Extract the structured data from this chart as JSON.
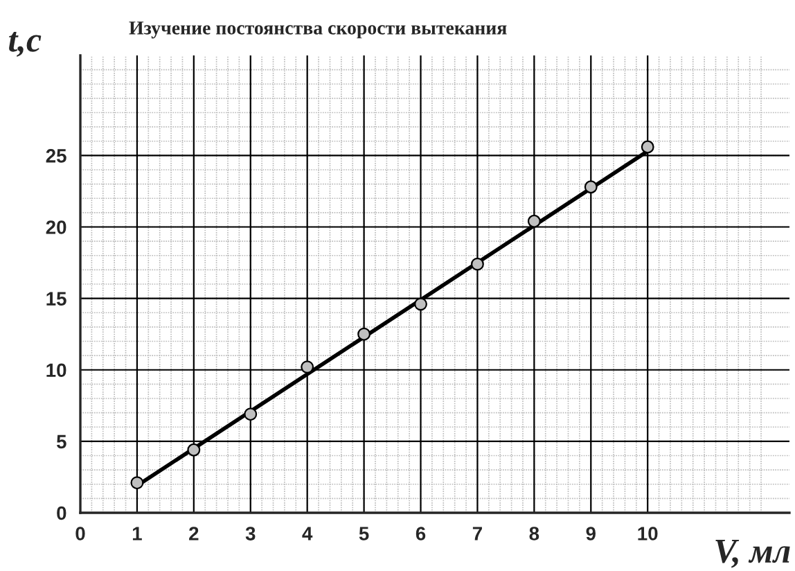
{
  "chart_data": {
    "type": "scatter",
    "title": "Изучение постоянства скорости вытекания",
    "xlabel": "V, мл",
    "ylabel": "t,c",
    "x": [
      1,
      2,
      3,
      4,
      5,
      6,
      7,
      8,
      9,
      10
    ],
    "series": [
      {
        "color": "#c0c0c0",
        "marker": "circle",
        "values": [
          2.1,
          4.4,
          6.9,
          10.2,
          12.5,
          14.6,
          17.4,
          20.4,
          22.8,
          25.6
        ]
      },
      {
        "type": "line",
        "color": "#000000",
        "x": [
          1,
          10
        ],
        "values": [
          1.9,
          25.3
        ]
      }
    ],
    "xlim": [
      0,
      12.5
    ],
    "ylim": [
      0,
      32
    ],
    "xticks": [
      0,
      1,
      2,
      3,
      4,
      5,
      6,
      7,
      8,
      9,
      10
    ],
    "yticks": [
      0,
      5,
      10,
      15,
      20,
      25
    ],
    "grid": true,
    "legend": false
  }
}
